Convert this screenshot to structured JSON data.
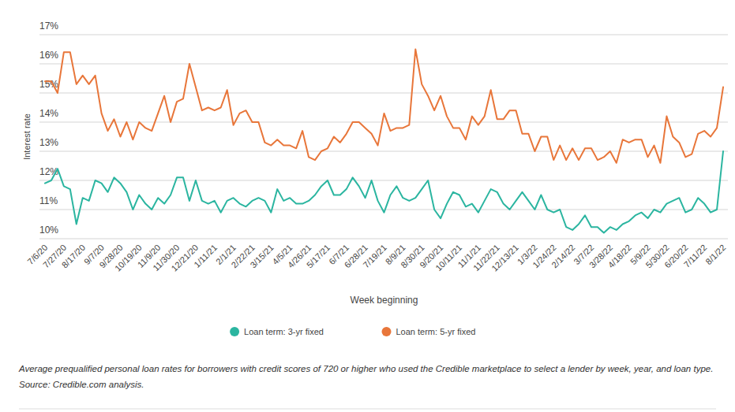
{
  "chart_data": {
    "type": "line",
    "y_label": "Interest rate",
    "x_label": "Week beginning",
    "caption": "Average prequalified personal loan rates for borrowers with credit scores of 720 or higher who used the Credible marketplace to select a lender by week, year, and loan type. Source: Credible.com analysis.",
    "categories": [
      "7/6/20",
      null,
      null,
      "7/27/20",
      null,
      null,
      "8/17/20",
      null,
      null,
      "9/7/20",
      null,
      null,
      "9/28/20",
      null,
      null,
      "10/19/20",
      null,
      null,
      "11/9/20",
      null,
      null,
      "11/30/20",
      null,
      null,
      "12/21/20",
      null,
      null,
      "1/11/21",
      null,
      null,
      "2/1/21",
      null,
      null,
      "2/22/21",
      null,
      null,
      "3/15/21",
      null,
      null,
      "4/5/21",
      null,
      null,
      "4/26/21",
      null,
      null,
      "5/17/21",
      null,
      null,
      "6/7/21",
      null,
      null,
      "6/28/21",
      null,
      null,
      "7/19/21",
      null,
      null,
      "8/9/21",
      null,
      null,
      "8/30/21",
      null,
      null,
      "9/20/21",
      null,
      null,
      "10/11/21",
      null,
      null,
      "11/1/21",
      null,
      null,
      "11/22/21",
      null,
      null,
      "12/13/21",
      null,
      null,
      "1/3/22",
      null,
      null,
      "1/24/22",
      null,
      null,
      "2/14/22",
      null,
      null,
      "3/7/22",
      null,
      null,
      "3/28/22",
      null,
      null,
      "4/18/22",
      null,
      null,
      "5/9/22",
      null,
      null,
      "5/30/22",
      null,
      null,
      "6/20/22",
      null,
      null,
      "7/11/22",
      null,
      null,
      "8/1/22"
    ],
    "series": [
      {
        "name": "Loan term: 3-yr fixed",
        "color": "#2bb5a0",
        "values": [
          11.9,
          12.0,
          12.4,
          11.8,
          11.7,
          10.5,
          11.4,
          11.3,
          12.0,
          11.9,
          11.6,
          12.1,
          11.9,
          11.6,
          11.0,
          11.5,
          11.2,
          11.0,
          11.4,
          11.2,
          11.5,
          12.1,
          12.1,
          11.3,
          12.0,
          11.3,
          11.2,
          11.3,
          10.9,
          11.3,
          11.4,
          11.2,
          11.1,
          11.3,
          11.4,
          11.3,
          10.9,
          11.7,
          11.3,
          11.4,
          11.2,
          11.2,
          11.3,
          11.5,
          11.8,
          12.0,
          11.5,
          11.5,
          11.7,
          12.1,
          11.8,
          11.4,
          12.0,
          11.3,
          10.9,
          11.5,
          11.8,
          11.4,
          11.3,
          11.4,
          11.7,
          12.0,
          11.0,
          10.7,
          11.2,
          11.6,
          11.5,
          11.1,
          11.2,
          10.9,
          11.3,
          11.7,
          11.6,
          11.2,
          11.0,
          11.3,
          11.6,
          11.3,
          11.0,
          11.5,
          11.0,
          10.9,
          11.0,
          10.4,
          10.3,
          10.5,
          10.8,
          10.4,
          10.4,
          10.2,
          10.4,
          10.3,
          10.5,
          10.6,
          10.8,
          10.9,
          10.7,
          11.0,
          10.9,
          11.2,
          11.3,
          11.4,
          10.9,
          11.0,
          11.4,
          11.2,
          10.9,
          11.0,
          13.0
        ]
      },
      {
        "name": "Loan term: 5-yr fixed",
        "color": "#e8763a",
        "values": [
          15.4,
          15.4,
          15.0,
          16.4,
          16.4,
          15.3,
          15.6,
          15.3,
          15.6,
          14.3,
          13.7,
          14.1,
          13.5,
          14.0,
          13.4,
          14.0,
          13.8,
          13.7,
          14.3,
          14.9,
          14.0,
          14.7,
          14.8,
          16.0,
          15.2,
          14.4,
          14.5,
          14.4,
          14.5,
          15.1,
          13.9,
          14.3,
          14.4,
          14.0,
          14.0,
          13.3,
          13.2,
          13.4,
          13.2,
          13.2,
          13.1,
          13.7,
          12.8,
          12.7,
          13.0,
          13.1,
          13.5,
          13.3,
          13.6,
          14.0,
          14.0,
          13.8,
          13.6,
          13.2,
          14.3,
          13.7,
          13.8,
          13.8,
          13.9,
          16.5,
          15.3,
          14.9,
          14.4,
          14.9,
          14.2,
          13.8,
          13.8,
          13.4,
          14.2,
          13.9,
          14.2,
          15.1,
          14.1,
          14.1,
          14.4,
          14.4,
          13.6,
          13.6,
          13.0,
          13.5,
          13.5,
          12.7,
          13.2,
          12.7,
          13.1,
          12.7,
          13.1,
          13.1,
          12.7,
          12.8,
          13.0,
          12.6,
          13.4,
          13.3,
          13.4,
          13.4,
          12.8,
          13.2,
          12.6,
          14.2,
          13.5,
          13.3,
          12.8,
          12.9,
          13.6,
          13.7,
          13.5,
          13.8,
          15.2
        ]
      }
    ],
    "ylim": [
      10,
      17
    ],
    "yticks": [
      {
        "value": 10,
        "label": "10%"
      },
      {
        "value": 11,
        "label": "11%"
      },
      {
        "value": 12,
        "label": "12%"
      },
      {
        "value": 13,
        "label": "13%"
      },
      {
        "value": 14,
        "label": "14%"
      },
      {
        "value": 15,
        "label": "15%"
      },
      {
        "value": 16,
        "label": "16%"
      },
      {
        "value": 17,
        "label": "17%"
      }
    ],
    "grid": true,
    "legend": "bottom"
  }
}
